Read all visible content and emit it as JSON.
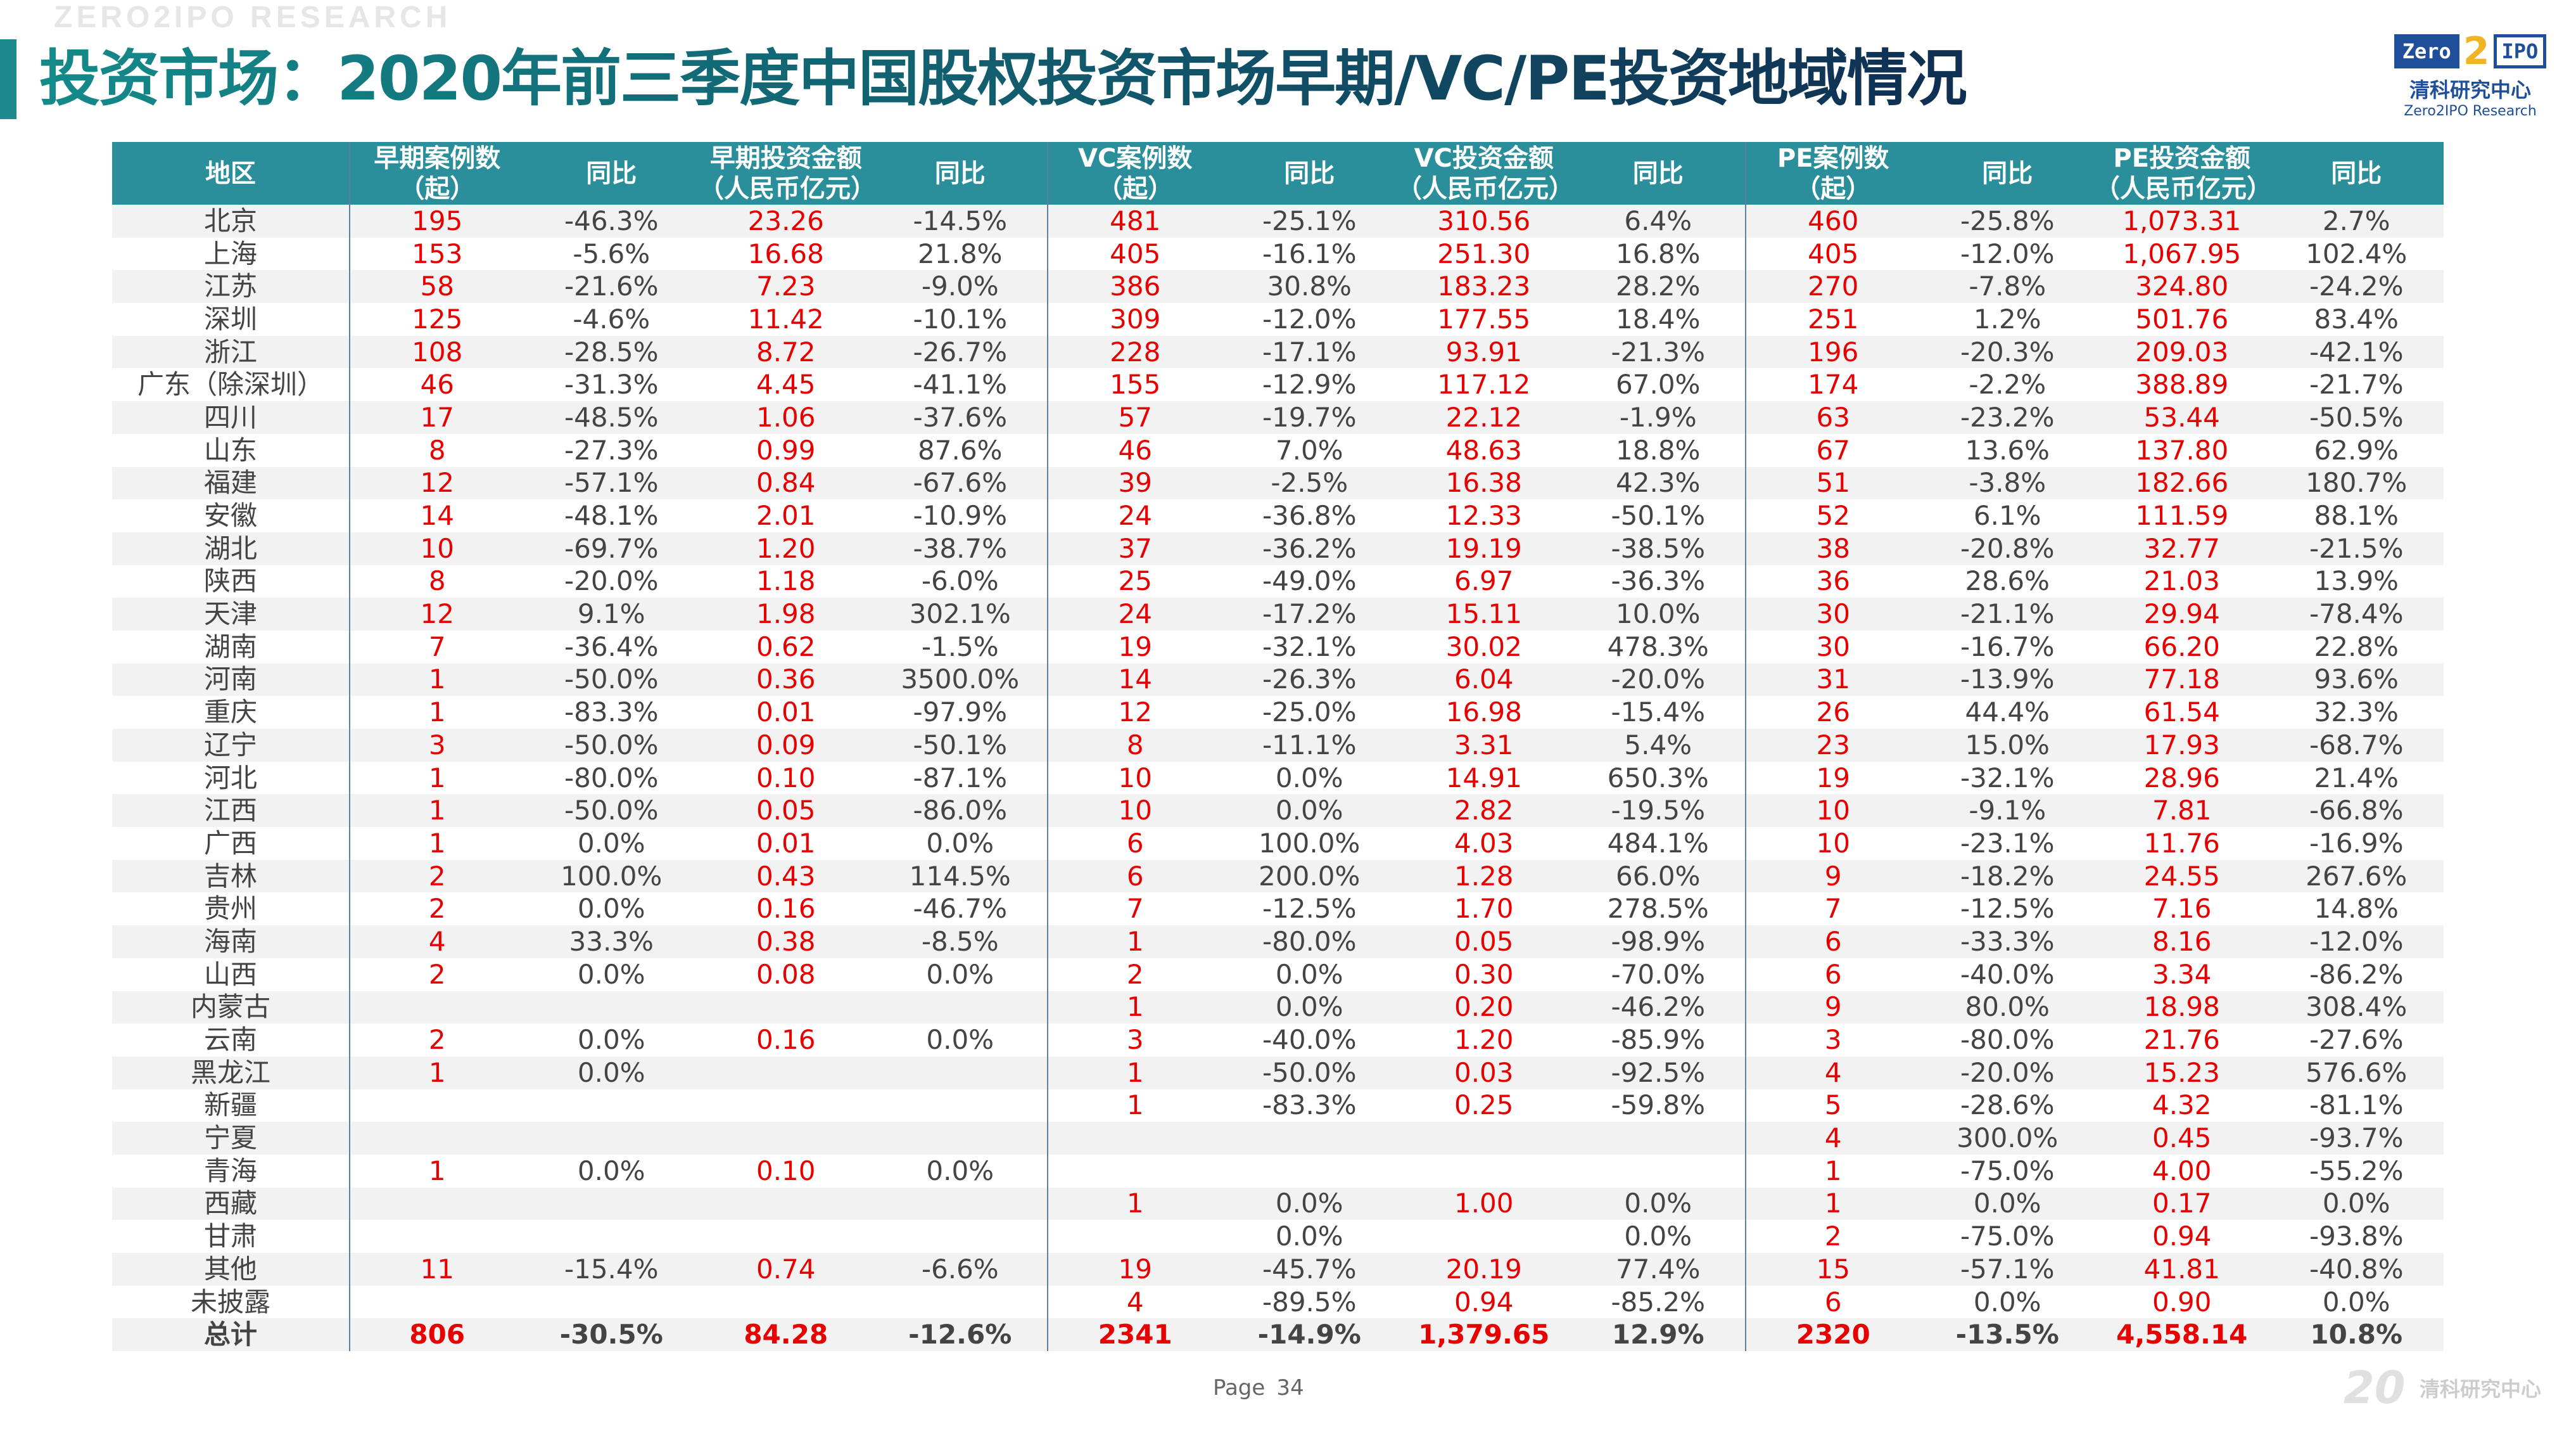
{
  "watermark": "ZERO2IPO RESEARCH",
  "title": "投资市场：2020年前三季度中国股权投资市场早期/VC/PE投资地域情况",
  "logo": {
    "box_left": "Zero",
    "box_mid": "2",
    "box_right": "IPO",
    "cn": "清科研究中心",
    "en": "Zero2IPO Research"
  },
  "table": {
    "headers": [
      "地区",
      "早期案例数（起）",
      "同比",
      "早期投资金额（人民币亿元）",
      "同比",
      "VC案例数（起）",
      "同比",
      "VC投资金额（人民币亿元）",
      "同比",
      "PE案例数（起）",
      "同比",
      "PE投资金额（人民币亿元）",
      "同比"
    ],
    "rows": [
      [
        "北京",
        "195",
        "-46.3%",
        "23.26",
        "-14.5%",
        "481",
        "-25.1%",
        "310.56",
        "6.4%",
        "460",
        "-25.8%",
        "1,073.31",
        "2.7%"
      ],
      [
        "上海",
        "153",
        "-5.6%",
        "16.68",
        "21.8%",
        "405",
        "-16.1%",
        "251.30",
        "16.8%",
        "405",
        "-12.0%",
        "1,067.95",
        "102.4%"
      ],
      [
        "江苏",
        "58",
        "-21.6%",
        "7.23",
        "-9.0%",
        "386",
        "30.8%",
        "183.23",
        "28.2%",
        "270",
        "-7.8%",
        "324.80",
        "-24.2%"
      ],
      [
        "深圳",
        "125",
        "-4.6%",
        "11.42",
        "-10.1%",
        "309",
        "-12.0%",
        "177.55",
        "18.4%",
        "251",
        "1.2%",
        "501.76",
        "83.4%"
      ],
      [
        "浙江",
        "108",
        "-28.5%",
        "8.72",
        "-26.7%",
        "228",
        "-17.1%",
        "93.91",
        "-21.3%",
        "196",
        "-20.3%",
        "209.03",
        "-42.1%"
      ],
      [
        "广东（除深圳）",
        "46",
        "-31.3%",
        "4.45",
        "-41.1%",
        "155",
        "-12.9%",
        "117.12",
        "67.0%",
        "174",
        "-2.2%",
        "388.89",
        "-21.7%"
      ],
      [
        "四川",
        "17",
        "-48.5%",
        "1.06",
        "-37.6%",
        "57",
        "-19.7%",
        "22.12",
        "-1.9%",
        "63",
        "-23.2%",
        "53.44",
        "-50.5%"
      ],
      [
        "山东",
        "8",
        "-27.3%",
        "0.99",
        "87.6%",
        "46",
        "7.0%",
        "48.63",
        "18.8%",
        "67",
        "13.6%",
        "137.80",
        "62.9%"
      ],
      [
        "福建",
        "12",
        "-57.1%",
        "0.84",
        "-67.6%",
        "39",
        "-2.5%",
        "16.38",
        "42.3%",
        "51",
        "-3.8%",
        "182.66",
        "180.7%"
      ],
      [
        "安徽",
        "14",
        "-48.1%",
        "2.01",
        "-10.9%",
        "24",
        "-36.8%",
        "12.33",
        "-50.1%",
        "52",
        "6.1%",
        "111.59",
        "88.1%"
      ],
      [
        "湖北",
        "10",
        "-69.7%",
        "1.20",
        "-38.7%",
        "37",
        "-36.2%",
        "19.19",
        "-38.5%",
        "38",
        "-20.8%",
        "32.77",
        "-21.5%"
      ],
      [
        "陕西",
        "8",
        "-20.0%",
        "1.18",
        "-6.0%",
        "25",
        "-49.0%",
        "6.97",
        "-36.3%",
        "36",
        "28.6%",
        "21.03",
        "13.9%"
      ],
      [
        "天津",
        "12",
        "9.1%",
        "1.98",
        "302.1%",
        "24",
        "-17.2%",
        "15.11",
        "10.0%",
        "30",
        "-21.1%",
        "29.94",
        "-78.4%"
      ],
      [
        "湖南",
        "7",
        "-36.4%",
        "0.62",
        "-1.5%",
        "19",
        "-32.1%",
        "30.02",
        "478.3%",
        "30",
        "-16.7%",
        "66.20",
        "22.8%"
      ],
      [
        "河南",
        "1",
        "-50.0%",
        "0.36",
        "3500.0%",
        "14",
        "-26.3%",
        "6.04",
        "-20.0%",
        "31",
        "-13.9%",
        "77.18",
        "93.6%"
      ],
      [
        "重庆",
        "1",
        "-83.3%",
        "0.01",
        "-97.9%",
        "12",
        "-25.0%",
        "16.98",
        "-15.4%",
        "26",
        "44.4%",
        "61.54",
        "32.3%"
      ],
      [
        "辽宁",
        "3",
        "-50.0%",
        "0.09",
        "-50.1%",
        "8",
        "-11.1%",
        "3.31",
        "5.4%",
        "23",
        "15.0%",
        "17.93",
        "-68.7%"
      ],
      [
        "河北",
        "1",
        "-80.0%",
        "0.10",
        "-87.1%",
        "10",
        "0.0%",
        "14.91",
        "650.3%",
        "19",
        "-32.1%",
        "28.96",
        "21.4%"
      ],
      [
        "江西",
        "1",
        "-50.0%",
        "0.05",
        "-86.0%",
        "10",
        "0.0%",
        "2.82",
        "-19.5%",
        "10",
        "-9.1%",
        "7.81",
        "-66.8%"
      ],
      [
        "广西",
        "1",
        "0.0%",
        "0.01",
        "0.0%",
        "6",
        "100.0%",
        "4.03",
        "484.1%",
        "10",
        "-23.1%",
        "11.76",
        "-16.9%"
      ],
      [
        "吉林",
        "2",
        "100.0%",
        "0.43",
        "114.5%",
        "6",
        "200.0%",
        "1.28",
        "66.0%",
        "9",
        "-18.2%",
        "24.55",
        "267.6%"
      ],
      [
        "贵州",
        "2",
        "0.0%",
        "0.16",
        "-46.7%",
        "7",
        "-12.5%",
        "1.70",
        "278.5%",
        "7",
        "-12.5%",
        "7.16",
        "14.8%"
      ],
      [
        "海南",
        "4",
        "33.3%",
        "0.38",
        "-8.5%",
        "1",
        "-80.0%",
        "0.05",
        "-98.9%",
        "6",
        "-33.3%",
        "8.16",
        "-12.0%"
      ],
      [
        "山西",
        "2",
        "0.0%",
        "0.08",
        "0.0%",
        "2",
        "0.0%",
        "0.30",
        "-70.0%",
        "6",
        "-40.0%",
        "3.34",
        "-86.2%"
      ],
      [
        "内蒙古",
        "",
        "",
        "",
        "",
        "1",
        "0.0%",
        "0.20",
        "-46.2%",
        "9",
        "80.0%",
        "18.98",
        "308.4%"
      ],
      [
        "云南",
        "2",
        "0.0%",
        "0.16",
        "0.0%",
        "3",
        "-40.0%",
        "1.20",
        "-85.9%",
        "3",
        "-80.0%",
        "21.76",
        "-27.6%"
      ],
      [
        "黑龙江",
        "1",
        "0.0%",
        "",
        "",
        "1",
        "-50.0%",
        "0.03",
        "-92.5%",
        "4",
        "-20.0%",
        "15.23",
        "576.6%"
      ],
      [
        "新疆",
        "",
        "",
        "",
        "",
        "1",
        "-83.3%",
        "0.25",
        "-59.8%",
        "5",
        "-28.6%",
        "4.32",
        "-81.1%"
      ],
      [
        "宁夏",
        "",
        "",
        "",
        "",
        "",
        "",
        "",
        "",
        "4",
        "300.0%",
        "0.45",
        "-93.7%"
      ],
      [
        "青海",
        "1",
        "0.0%",
        "0.10",
        "0.0%",
        "",
        "",
        "",
        "",
        "1",
        "-75.0%",
        "4.00",
        "-55.2%"
      ],
      [
        "西藏",
        "",
        "",
        "",
        "",
        "1",
        "0.0%",
        "1.00",
        "0.0%",
        "1",
        "0.0%",
        "0.17",
        "0.0%"
      ],
      [
        "甘肃",
        "",
        "",
        "",
        "",
        "",
        "0.0%",
        "",
        "0.0%",
        "2",
        "-75.0%",
        "0.94",
        "-93.8%"
      ],
      [
        "其他",
        "11",
        "-15.4%",
        "0.74",
        "-6.6%",
        "19",
        "-45.7%",
        "20.19",
        "77.4%",
        "15",
        "-57.1%",
        "41.81",
        "-40.8%"
      ],
      [
        "未披露",
        "",
        "",
        "",
        "",
        "4",
        "-89.5%",
        "0.94",
        "-85.2%",
        "6",
        "0.0%",
        "0.90",
        "0.0%"
      ],
      [
        "总计",
        "806",
        "-30.5%",
        "84.28",
        "-12.6%",
        "2341",
        "-14.9%",
        "1,379.65",
        "12.9%",
        "2320",
        "-13.5%",
        "4,558.14",
        "10.8%"
      ]
    ]
  },
  "footer": {
    "page_label": "Page",
    "page_number": "34",
    "brand": "清科研究中心",
    "anniversary": "20"
  },
  "colors": {
    "header_bg": "#2a8f9a",
    "value_red": "#e80000",
    "title_teal": "#148a8a",
    "title_navy": "#0f2f52"
  }
}
